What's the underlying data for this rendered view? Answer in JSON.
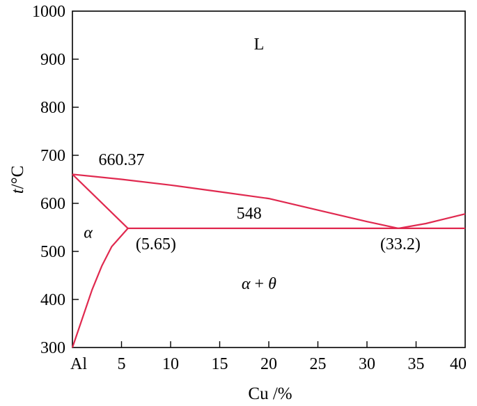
{
  "chart_data": {
    "type": "line",
    "xlabel": "Cu /%",
    "ylabel": "t/°C",
    "ylabel_italic": "t",
    "ylabel_unit": "/°C",
    "xlim": [
      0,
      40
    ],
    "ylim": [
      300,
      1000
    ],
    "grid": false,
    "x_ticks": [
      {
        "value": 0,
        "label": "Al"
      },
      {
        "value": 5,
        "label": "5"
      },
      {
        "value": 10,
        "label": "10"
      },
      {
        "value": 15,
        "label": "15"
      },
      {
        "value": 20,
        "label": "20"
      },
      {
        "value": 25,
        "label": "25"
      },
      {
        "value": 30,
        "label": "30"
      },
      {
        "value": 35,
        "label": "35"
      },
      {
        "value": 40,
        "label": "40"
      }
    ],
    "y_ticks": [
      {
        "value": 300,
        "label": "300"
      },
      {
        "value": 400,
        "label": "400"
      },
      {
        "value": 500,
        "label": "500"
      },
      {
        "value": 600,
        "label": "600"
      },
      {
        "value": 700,
        "label": "700"
      },
      {
        "value": 800,
        "label": "800"
      },
      {
        "value": 900,
        "label": "900"
      },
      {
        "value": 1000,
        "label": "1000"
      }
    ],
    "curves": [
      {
        "id": "liquidus-al-side",
        "points": [
          [
            0,
            660.37
          ],
          [
            5,
            650
          ],
          [
            10,
            638
          ],
          [
            15,
            624
          ],
          [
            20,
            610
          ],
          [
            25,
            586
          ],
          [
            30,
            562
          ],
          [
            33.2,
            548
          ]
        ]
      },
      {
        "id": "liquidus-cu-side",
        "points": [
          [
            33.2,
            548
          ],
          [
            36,
            558
          ],
          [
            40,
            578
          ]
        ]
      },
      {
        "id": "solidus",
        "points": [
          [
            0,
            660.37
          ],
          [
            5.65,
            548
          ]
        ]
      },
      {
        "id": "eutectic-line",
        "points": [
          [
            5.65,
            548
          ],
          [
            40,
            548
          ]
        ]
      },
      {
        "id": "solvus",
        "points": [
          [
            0,
            300
          ],
          [
            1,
            360
          ],
          [
            2,
            420
          ],
          [
            3,
            470
          ],
          [
            4,
            510
          ],
          [
            5.65,
            548
          ]
        ]
      }
    ],
    "annotations": [
      {
        "id": "label-liquid",
        "text": "L",
        "x": 19,
        "y": 920,
        "italic": false
      },
      {
        "id": "label-melting-point",
        "text": "660.37",
        "x": 5,
        "y": 680,
        "italic": false
      },
      {
        "id": "label-alpha",
        "text": "α",
        "x": 1.6,
        "y": 528,
        "italic": true
      },
      {
        "id": "label-eutectic-temp",
        "text": "548",
        "x": 18,
        "y": 568,
        "italic": false
      },
      {
        "id": "label-solubility-limit",
        "text": "(5.65)",
        "x": 8.5,
        "y": 504,
        "italic": false
      },
      {
        "id": "label-eutectic-comp",
        "text": "(33.2)",
        "x": 33.4,
        "y": 504,
        "italic": false
      }
    ],
    "two_phase_label": {
      "alpha": "α",
      "plus": " + ",
      "theta": "θ",
      "x": 19,
      "y": 422
    }
  }
}
